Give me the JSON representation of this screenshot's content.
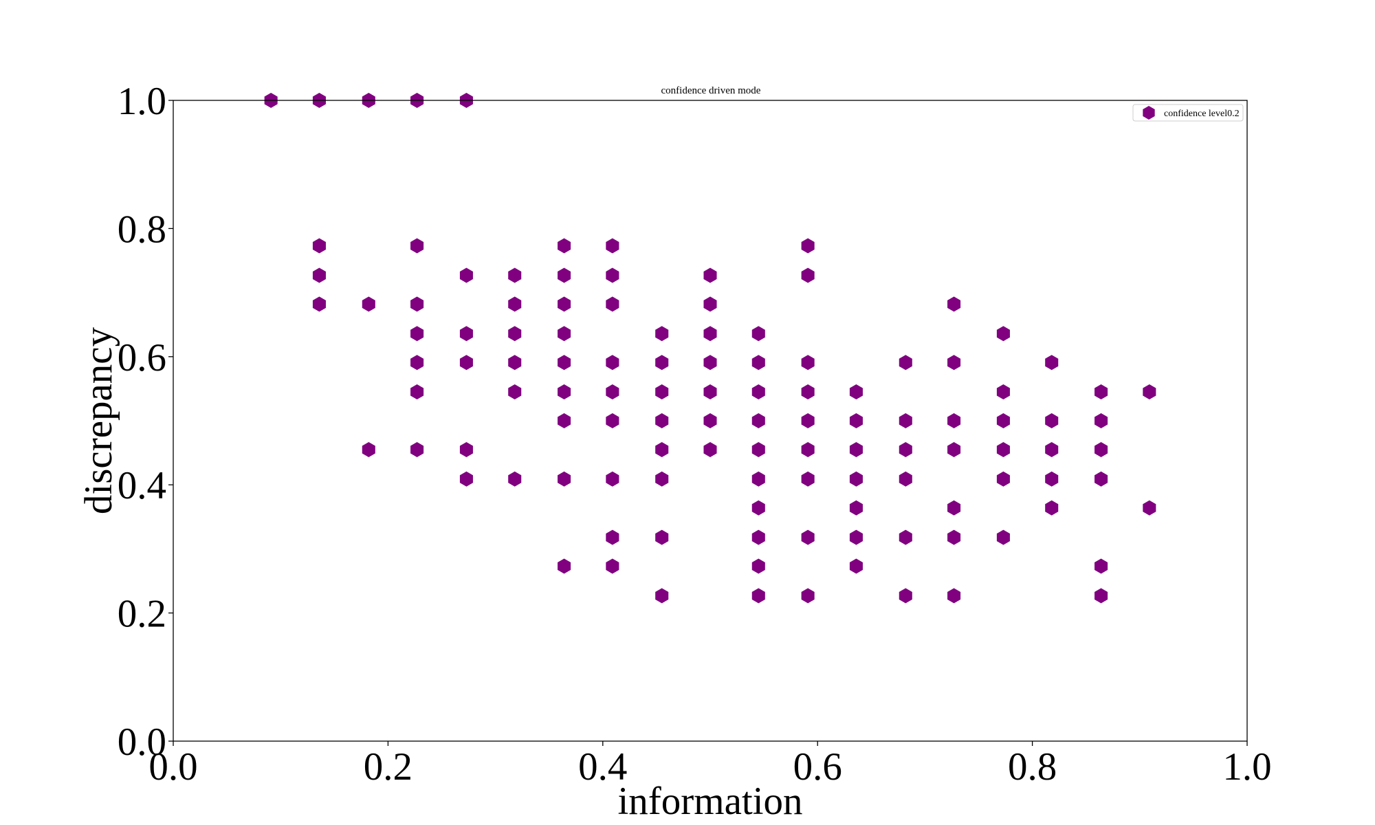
{
  "chart_data": {
    "type": "scatter",
    "title": "confidence driven mode",
    "xlabel": "information",
    "ylabel": "discrepancy",
    "xlim": [
      0.0,
      1.0
    ],
    "ylim": [
      0.0,
      1.0
    ],
    "xticks": [
      "0.0",
      "0.2",
      "0.4",
      "0.6",
      "0.8",
      "1.0"
    ],
    "yticks": [
      "0.0",
      "0.2",
      "0.4",
      "0.6",
      "0.8",
      "1.0"
    ],
    "grid": false,
    "legend_position": "top-right",
    "marker": "hexagon",
    "series": [
      {
        "name": "confidence level0.2",
        "color": "#800080",
        "points": [
          [
            0.091,
            1.0
          ],
          [
            0.136,
            1.0
          ],
          [
            0.182,
            1.0
          ],
          [
            0.227,
            1.0
          ],
          [
            0.273,
            1.0
          ],
          [
            0.136,
            0.773
          ],
          [
            0.136,
            0.727
          ],
          [
            0.136,
            0.682
          ],
          [
            0.182,
            0.682
          ],
          [
            0.182,
            0.455
          ],
          [
            0.227,
            0.773
          ],
          [
            0.227,
            0.682
          ],
          [
            0.227,
            0.636
          ],
          [
            0.227,
            0.591
          ],
          [
            0.227,
            0.545
          ],
          [
            0.227,
            0.455
          ],
          [
            0.273,
            0.727
          ],
          [
            0.273,
            0.636
          ],
          [
            0.273,
            0.591
          ],
          [
            0.273,
            0.455
          ],
          [
            0.273,
            0.409
          ],
          [
            0.318,
            0.727
          ],
          [
            0.318,
            0.682
          ],
          [
            0.318,
            0.636
          ],
          [
            0.318,
            0.591
          ],
          [
            0.318,
            0.545
          ],
          [
            0.318,
            0.409
          ],
          [
            0.364,
            0.773
          ],
          [
            0.364,
            0.727
          ],
          [
            0.364,
            0.682
          ],
          [
            0.364,
            0.636
          ],
          [
            0.364,
            0.591
          ],
          [
            0.364,
            0.545
          ],
          [
            0.364,
            0.5
          ],
          [
            0.364,
            0.409
          ],
          [
            0.364,
            0.273
          ],
          [
            0.409,
            0.773
          ],
          [
            0.409,
            0.727
          ],
          [
            0.409,
            0.682
          ],
          [
            0.409,
            0.591
          ],
          [
            0.409,
            0.545
          ],
          [
            0.409,
            0.5
          ],
          [
            0.409,
            0.409
          ],
          [
            0.409,
            0.318
          ],
          [
            0.409,
            0.273
          ],
          [
            0.455,
            0.636
          ],
          [
            0.455,
            0.591
          ],
          [
            0.455,
            0.545
          ],
          [
            0.455,
            0.5
          ],
          [
            0.455,
            0.455
          ],
          [
            0.455,
            0.409
          ],
          [
            0.455,
            0.318
          ],
          [
            0.455,
            0.227
          ],
          [
            0.5,
            0.727
          ],
          [
            0.5,
            0.682
          ],
          [
            0.5,
            0.636
          ],
          [
            0.5,
            0.591
          ],
          [
            0.5,
            0.545
          ],
          [
            0.5,
            0.5
          ],
          [
            0.5,
            0.455
          ],
          [
            0.545,
            0.636
          ],
          [
            0.545,
            0.591
          ],
          [
            0.545,
            0.545
          ],
          [
            0.545,
            0.5
          ],
          [
            0.545,
            0.455
          ],
          [
            0.545,
            0.409
          ],
          [
            0.545,
            0.364
          ],
          [
            0.545,
            0.318
          ],
          [
            0.545,
            0.273
          ],
          [
            0.545,
            0.227
          ],
          [
            0.591,
            0.773
          ],
          [
            0.591,
            0.727
          ],
          [
            0.591,
            0.591
          ],
          [
            0.591,
            0.545
          ],
          [
            0.591,
            0.5
          ],
          [
            0.591,
            0.455
          ],
          [
            0.591,
            0.409
          ],
          [
            0.591,
            0.318
          ],
          [
            0.591,
            0.227
          ],
          [
            0.636,
            0.545
          ],
          [
            0.636,
            0.5
          ],
          [
            0.636,
            0.455
          ],
          [
            0.636,
            0.409
          ],
          [
            0.636,
            0.364
          ],
          [
            0.636,
            0.318
          ],
          [
            0.636,
            0.273
          ],
          [
            0.682,
            0.591
          ],
          [
            0.682,
            0.5
          ],
          [
            0.682,
            0.455
          ],
          [
            0.682,
            0.409
          ],
          [
            0.682,
            0.318
          ],
          [
            0.682,
            0.227
          ],
          [
            0.727,
            0.682
          ],
          [
            0.727,
            0.591
          ],
          [
            0.727,
            0.5
          ],
          [
            0.727,
            0.455
          ],
          [
            0.727,
            0.364
          ],
          [
            0.727,
            0.318
          ],
          [
            0.727,
            0.227
          ],
          [
            0.773,
            0.636
          ],
          [
            0.773,
            0.545
          ],
          [
            0.773,
            0.5
          ],
          [
            0.773,
            0.455
          ],
          [
            0.773,
            0.409
          ],
          [
            0.773,
            0.318
          ],
          [
            0.818,
            0.591
          ],
          [
            0.818,
            0.5
          ],
          [
            0.818,
            0.455
          ],
          [
            0.818,
            0.409
          ],
          [
            0.818,
            0.364
          ],
          [
            0.864,
            0.545
          ],
          [
            0.864,
            0.5
          ],
          [
            0.864,
            0.455
          ],
          [
            0.864,
            0.409
          ],
          [
            0.864,
            0.273
          ],
          [
            0.864,
            0.227
          ],
          [
            0.909,
            0.545
          ],
          [
            0.909,
            0.364
          ]
        ]
      }
    ]
  }
}
